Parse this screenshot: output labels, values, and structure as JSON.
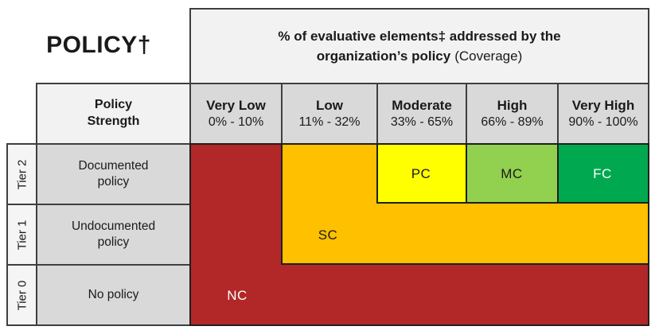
{
  "title": "POLICY†",
  "coverage_header": {
    "line1": "% of evaluative elements‡ addressed by the",
    "line2_bold": "organization’s policy",
    "line2_normal": "(Coverage)"
  },
  "row_header_label": "Policy Strength",
  "columns": [
    {
      "label": "Very Low",
      "range": "0% - 10%"
    },
    {
      "label": "Low",
      "range": "11% - 32%"
    },
    {
      "label": "Moderate",
      "range": "33% - 65%"
    },
    {
      "label": "High",
      "range": "66% - 89%"
    },
    {
      "label": "Very High",
      "range": "90% - 100%"
    }
  ],
  "rows": [
    {
      "tier": "Tier 2",
      "strength": "Documented policy"
    },
    {
      "tier": "Tier 1",
      "strength": "Undocumented policy"
    },
    {
      "tier": "Tier 0",
      "strength": "No policy"
    }
  ],
  "regions": {
    "NC": {
      "label": "NC",
      "fill": "#B22828",
      "text_color": "#FFFFFF"
    },
    "SC": {
      "label": "SC",
      "fill": "#FFC000",
      "text_color": "#1A1A1A"
    },
    "PC": {
      "label": "PC",
      "fill": "#FFFF00",
      "text_color": "#1A1A1A"
    },
    "MC": {
      "label": "MC",
      "fill": "#92D050",
      "text_color": "#1A1A1A"
    },
    "FC": {
      "label": "FC",
      "fill": "#00A850",
      "text_color": "#FFFFFF"
    }
  },
  "matrix": {
    "Tier 2": [
      "NC",
      "SC",
      "PC",
      "MC",
      "FC"
    ],
    "Tier 1": [
      "NC",
      "SC",
      "SC",
      "SC",
      "SC"
    ],
    "Tier 0": [
      "NC",
      "NC",
      "NC",
      "NC",
      "NC"
    ]
  },
  "colors": {
    "header_light": "#F2F2F2",
    "header_gray": "#D9D9D9",
    "tier_cell": "#F5F5F5",
    "border_gray": "#3F3F3F",
    "border_dark": "#1F1F1F"
  }
}
